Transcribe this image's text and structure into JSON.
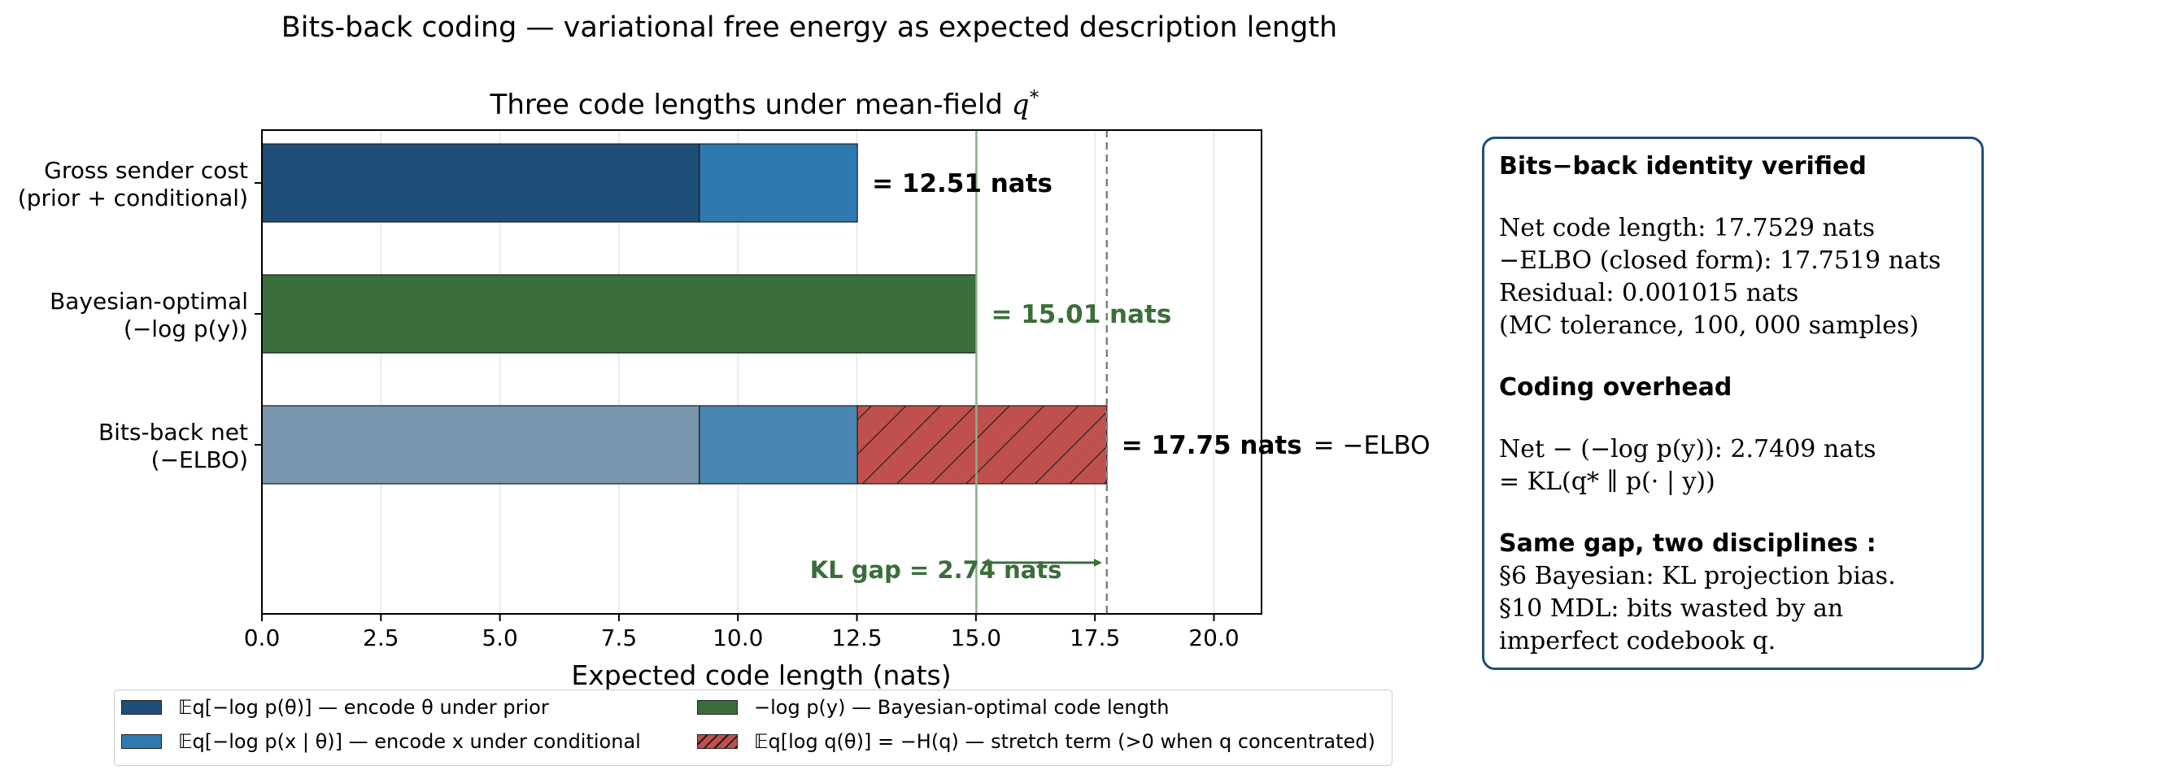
{
  "suptitle": "Bits-back coding — variational free energy as expected description length",
  "chart_data": {
    "type": "bar",
    "orientation": "horizontal",
    "stacked": true,
    "title": "Three code lengths under mean-field q*",
    "xlabel": "Expected code length (nats)",
    "xlim": [
      0,
      21
    ],
    "xticks": [
      "0.0",
      "2.5",
      "5.0",
      "7.5",
      "10.0",
      "12.5",
      "15.0",
      "17.5",
      "20.0"
    ],
    "xtick_values": [
      0,
      2.5,
      5,
      7.5,
      10,
      12.5,
      15,
      17.5,
      20
    ],
    "grid": "vertical",
    "categories": [
      {
        "line1": "Gross sender cost",
        "line2": "(prior + conditional)"
      },
      {
        "line1": "Bayesian-optimal",
        "line2": "(−log p(y))"
      },
      {
        "line1": "Bits-back net",
        "line2": "(−ELBO)"
      }
    ],
    "bars": [
      {
        "segments": [
          {
            "series": "prior",
            "start": 0,
            "end": 9.19
          },
          {
            "series": "conditional",
            "start": 9.19,
            "end": 12.51
          }
        ],
        "label": "= 12.51 nats",
        "label_color": "#000000"
      },
      {
        "segments": [
          {
            "series": "bayes",
            "start": 0,
            "end": 15.01
          }
        ],
        "label": "= 15.01 nats",
        "label_color": "#3a6e3a"
      },
      {
        "segments": [
          {
            "series": "prior_faded",
            "start": 0,
            "end": 9.19
          },
          {
            "series": "conditional_faded",
            "start": 9.19,
            "end": 12.51
          },
          {
            "series": "stretch",
            "start": 12.51,
            "end": 17.75
          }
        ],
        "label": "= 17.75 nats",
        "label_suffix": "= −ELBO",
        "label_color": "#000000"
      }
    ],
    "reference_lines": [
      {
        "x": 15.01,
        "style": "solid",
        "color": "#8fae8f"
      },
      {
        "x": 17.75,
        "style": "dashed",
        "color": "#808080"
      }
    ],
    "annotation": {
      "text": "KL gap = 2.74 nats",
      "from": 15.01,
      "to": 17.75,
      "color": "#3a6e3a"
    },
    "colors": {
      "prior": "#1f4e79",
      "conditional": "#2e7ab0",
      "bayes": "#3a6e3a",
      "prior_faded": "#7896ae",
      "conditional_faded": "#4a86b2",
      "stretch": "#c0504d"
    },
    "legend": [
      {
        "series": "prior",
        "text": "𝔼q[−log p(θ)] — encode θ under prior"
      },
      {
        "series": "conditional",
        "text": "𝔼q[−log p(x | θ)] — encode x under conditional"
      },
      {
        "series": "bayes",
        "text": "−log p(y) — Bayesian-optimal code length"
      },
      {
        "series": "stretch",
        "text": "𝔼q[log q(θ)] = −H(q) — stretch term (>0 when q concentrated)"
      }
    ],
    "legend_placement": "below"
  },
  "info_box": {
    "heading1": "Bits−back identity verified",
    "net_code": "Net code length:  17.7529 nats",
    "elbo": "−ELBO (closed form):  17.7519 nats",
    "residual": "Residual:  0.001015 nats",
    "tolerance": "(MC tolerance, 100, 000 samples)",
    "heading2": "Coding overhead",
    "overhead": "Net − (−log p(y)):  2.7409 nats",
    "kl": "= KL(q* ∥ p(· | y))",
    "heading3": "Same gap,  two disciplines :",
    "line_bayes": "§6 Bayesian: KL projection bias.",
    "line_mdl1": "§10 MDL: bits wasted by an",
    "line_mdl2": "imperfect codebook q."
  }
}
